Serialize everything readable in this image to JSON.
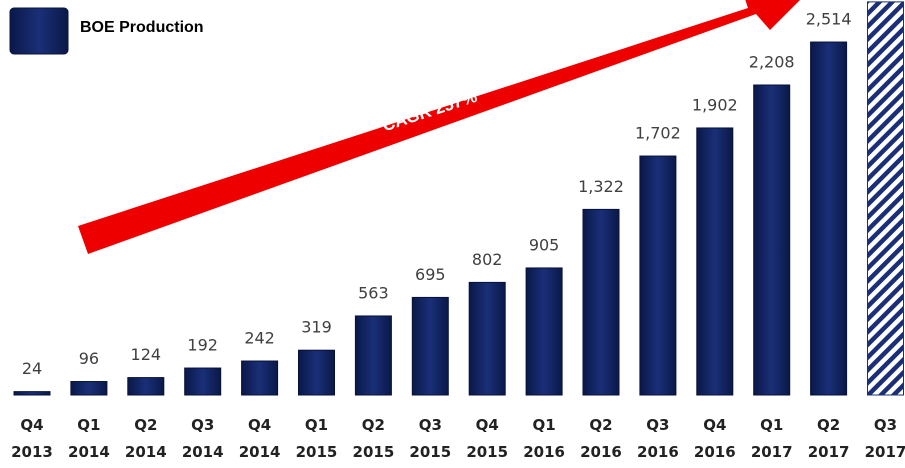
{
  "chart_data": {
    "type": "bar",
    "legend": "BOE Production",
    "annotation": "CAGR 257%",
    "categories": [
      "Q4 2013",
      "Q1 2014",
      "Q2 2014",
      "Q3 2014",
      "Q4 2014",
      "Q1 2015",
      "Q2 2015",
      "Q3 2015",
      "Q4 2015",
      "Q1 2016",
      "Q2 2016",
      "Q3 2016",
      "Q4 2016",
      "Q1 2017",
      "Q2 2017",
      "Q3 2017"
    ],
    "values": [
      24,
      96,
      124,
      192,
      242,
      319,
      563,
      695,
      802,
      905,
      1322,
      1702,
      1902,
      2208,
      2514,
      2800
    ],
    "value_labels": [
      "24",
      "96",
      "124",
      "192",
      "242",
      "319",
      "563",
      "695",
      "802",
      "905",
      "1,322",
      "1,702",
      "1,902",
      "2,208",
      "2,514",
      null
    ],
    "color": "#0d1f5c",
    "hatched": [
      false,
      false,
      false,
      false,
      false,
      false,
      false,
      false,
      false,
      false,
      false,
      false,
      false,
      false,
      false,
      true
    ],
    "ylim": [
      0,
      3000
    ]
  }
}
